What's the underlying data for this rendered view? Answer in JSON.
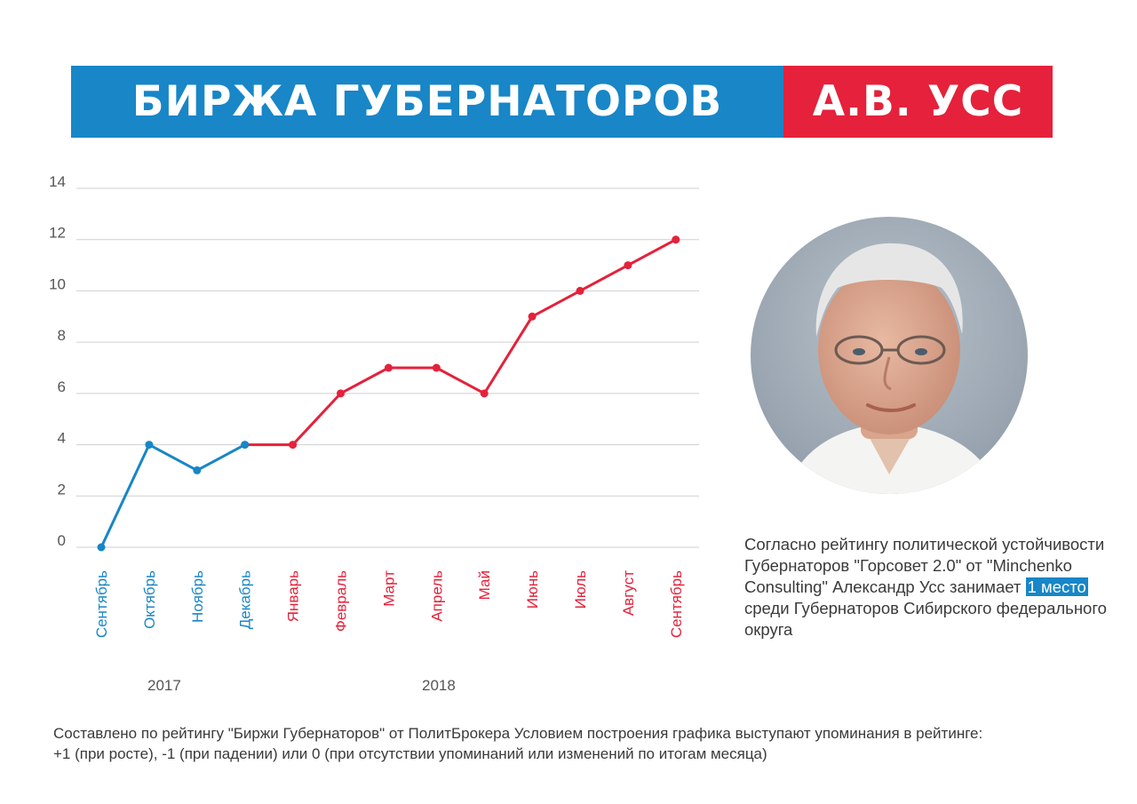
{
  "header": {
    "title": "БИРЖА ГУБЕРНАТОРОВ",
    "name": "А.В. УСС",
    "colors": {
      "blue": "#1886c7",
      "red": "#e5213b"
    }
  },
  "chart_data": {
    "type": "line",
    "categories": [
      "Сентябрь",
      "Октябрь",
      "Ноябрь",
      "Декабрь",
      "Январь",
      "Февраль",
      "Март",
      "Апрель",
      "Май",
      "Июнь",
      "Июль",
      "Август",
      "Сентябрь"
    ],
    "values": [
      0,
      4,
      3,
      4,
      4,
      6,
      7,
      7,
      6,
      9,
      10,
      11,
      12
    ],
    "segments": [
      {
        "year": "2017",
        "from": 0,
        "to": 3,
        "color": "#1886c7"
      },
      {
        "year": "2018",
        "from": 4,
        "to": 12,
        "color": "#e5213b"
      }
    ],
    "yticks": [
      0,
      2,
      4,
      6,
      8,
      10,
      12,
      14
    ],
    "ylim": [
      0,
      14
    ],
    "grid": true,
    "title": "",
    "xlabel": "",
    "ylabel": ""
  },
  "years": {
    "y2017": "2017",
    "y2018": "2018"
  },
  "description": {
    "before": "Согласно рейтингу политической устойчивости Губернаторов \"Горсовет 2.0\" от \"Minchenko Consulting\" Александр Усс занимает ",
    "highlight": "1 место",
    "after": " среди Губернаторов Сибирского федерального округа"
  },
  "footnote": {
    "line1": "Составлено по рейтингу \"Биржи Губернаторов\" от ПолитБрокера Условием построения графика выступают упоминания в рейтинге:",
    "line2": "+1 (при росте), -1 (при падении) или 0 (при отсутствии упоминаний или изменений по итогам месяца)"
  }
}
